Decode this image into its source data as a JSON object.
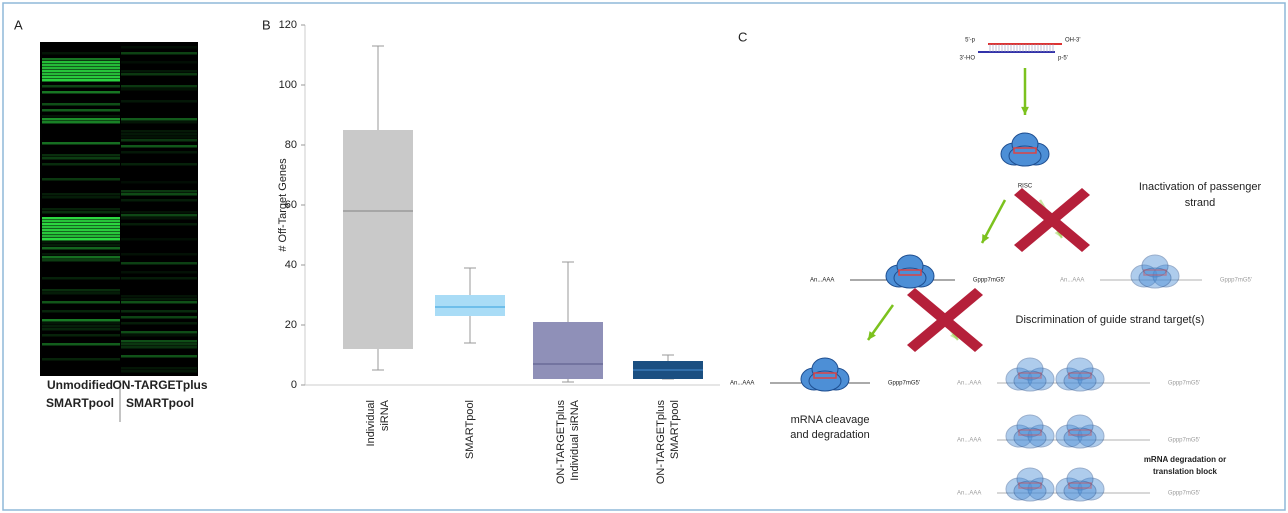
{
  "panel_a": {
    "label": "A",
    "columns": [
      [
        "Unmodified",
        "SMARTpool"
      ],
      [
        "ON-TARGETplus",
        "SMARTpool"
      ]
    ]
  },
  "chart_data": {
    "type": "box",
    "panel_label": "B",
    "y_label": "# Off-Target Genes",
    "categories": [
      [
        "Individual",
        "siRNA"
      ],
      [
        "SMARTpool"
      ],
      [
        "ON-TARGETplus",
        "Individual siRNA"
      ],
      [
        "ON-TARGETplus",
        "SMARTpool"
      ]
    ],
    "min": [
      5,
      14,
      1,
      2
    ],
    "q1": [
      12,
      23,
      2,
      2
    ],
    "median": [
      58,
      26,
      7,
      5
    ],
    "q3": [
      85,
      30,
      21,
      8
    ],
    "max": [
      113,
      39,
      41,
      10
    ],
    "colors": [
      "#c9c9c9",
      "#a9dcf6",
      "#8f90b8",
      "#1b4f81"
    ],
    "median_colors": [
      "#9a9a9a",
      "#5ab4e6",
      "#6a6a98",
      "#3a7ab8"
    ],
    "ylim": [
      0,
      120
    ],
    "yticks": [
      0,
      20,
      40,
      60,
      80,
      100,
      120
    ]
  },
  "panel_c": {
    "label": "C",
    "sirna_5p": "5'-p",
    "sirna_3oh": "OH-3'",
    "sirna_3ho": "3'-HO",
    "sirna_p5": "p-5'",
    "risc": "RISC",
    "inactivation": [
      "Inactivation of passenger",
      "strand"
    ],
    "polya": "An...AAA",
    "cap": "Gppp7mG5'",
    "discrimination": "Discrimination of guide strand target(s)",
    "cleavage": [
      "mRNA cleavage",
      "and degradation"
    ],
    "block": [
      "mRNA degradation or",
      "translation block"
    ]
  }
}
